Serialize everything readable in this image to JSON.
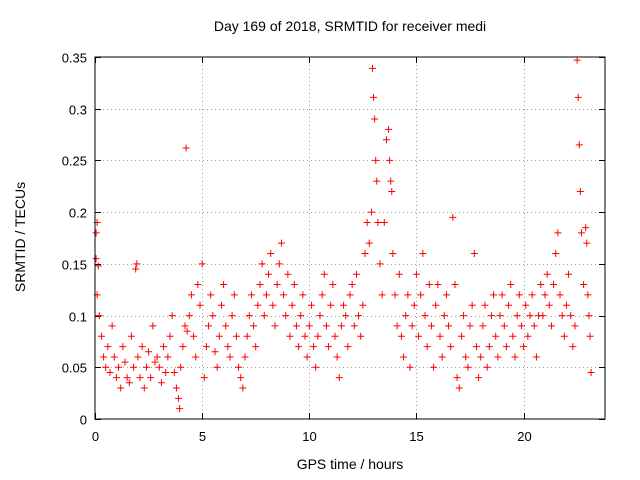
{
  "chart_data": {
    "type": "scatter",
    "title": "Day 169 of 2018, SRMTID for receiver medi",
    "xlabel": "GPS time / hours",
    "ylabel": "SRMTID / TECUs",
    "xlim": [
      0,
      23.8
    ],
    "ylim": [
      0,
      0.35
    ],
    "xticks": [
      0,
      5,
      10,
      15,
      20
    ],
    "xtick_labels": [
      "0",
      "5",
      "10",
      "15",
      "20"
    ],
    "yticks": [
      0,
      0.05,
      0.1,
      0.15,
      0.2,
      0.25,
      0.3,
      0.35
    ],
    "ytick_labels": [
      "0",
      "0.05",
      "0.1",
      "0.15",
      "0.2",
      "0.25",
      "0.3",
      "0.35"
    ],
    "grid": true,
    "marker": "+",
    "color": "#ff0000",
    "series": [
      {
        "name": "SRMTID",
        "points": [
          [
            0.05,
            0.18
          ],
          [
            0.1,
            0.19
          ],
          [
            0.05,
            0.155
          ],
          [
            0.15,
            0.148
          ],
          [
            0.1,
            0.12
          ],
          [
            0.2,
            0.1
          ],
          [
            0.3,
            0.08
          ],
          [
            0.4,
            0.06
          ],
          [
            0.5,
            0.05
          ],
          [
            0.6,
            0.07
          ],
          [
            0.7,
            0.045
          ],
          [
            0.8,
            0.09
          ],
          [
            0.9,
            0.06
          ],
          [
            1.0,
            0.04
          ],
          [
            1.1,
            0.05
          ],
          [
            1.2,
            0.03
          ],
          [
            1.3,
            0.07
          ],
          [
            1.4,
            0.055
          ],
          [
            1.5,
            0.04
          ],
          [
            1.6,
            0.035
          ],
          [
            1.7,
            0.08
          ],
          [
            1.8,
            0.05
          ],
          [
            1.9,
            0.145
          ],
          [
            1.95,
            0.15
          ],
          [
            2.0,
            0.06
          ],
          [
            2.1,
            0.04
          ],
          [
            2.2,
            0.07
          ],
          [
            2.3,
            0.03
          ],
          [
            2.4,
            0.05
          ],
          [
            2.5,
            0.065
          ],
          [
            2.6,
            0.04
          ],
          [
            2.7,
            0.09
          ],
          [
            2.8,
            0.055
          ],
          [
            2.9,
            0.06
          ],
          [
            3.0,
            0.05
          ],
          [
            3.1,
            0.035
          ],
          [
            3.2,
            0.07
          ],
          [
            3.3,
            0.045
          ],
          [
            3.4,
            0.06
          ],
          [
            3.5,
            0.08
          ],
          [
            3.6,
            0.1
          ],
          [
            3.7,
            0.045
          ],
          [
            3.8,
            0.03
          ],
          [
            3.9,
            0.02
          ],
          [
            3.95,
            0.01
          ],
          [
            4.0,
            0.05
          ],
          [
            4.1,
            0.07
          ],
          [
            4.2,
            0.09
          ],
          [
            4.25,
            0.262
          ],
          [
            4.3,
            0.085
          ],
          [
            4.4,
            0.1
          ],
          [
            4.5,
            0.12
          ],
          [
            4.6,
            0.08
          ],
          [
            4.7,
            0.06
          ],
          [
            4.8,
            0.13
          ],
          [
            4.9,
            0.11
          ],
          [
            5.0,
            0.15
          ],
          [
            5.1,
            0.04
          ],
          [
            5.2,
            0.07
          ],
          [
            5.3,
            0.09
          ],
          [
            5.4,
            0.12
          ],
          [
            5.5,
            0.1
          ],
          [
            5.6,
            0.065
          ],
          [
            5.7,
            0.05
          ],
          [
            5.8,
            0.08
          ],
          [
            5.9,
            0.11
          ],
          [
            6.0,
            0.13
          ],
          [
            6.1,
            0.09
          ],
          [
            6.2,
            0.07
          ],
          [
            6.3,
            0.06
          ],
          [
            6.4,
            0.1
          ],
          [
            6.5,
            0.12
          ],
          [
            6.6,
            0.08
          ],
          [
            6.7,
            0.05
          ],
          [
            6.8,
            0.04
          ],
          [
            6.9,
            0.03
          ],
          [
            7.0,
            0.06
          ],
          [
            7.1,
            0.08
          ],
          [
            7.2,
            0.1
          ],
          [
            7.3,
            0.12
          ],
          [
            7.4,
            0.09
          ],
          [
            7.5,
            0.07
          ],
          [
            7.6,
            0.11
          ],
          [
            7.7,
            0.13
          ],
          [
            7.8,
            0.15
          ],
          [
            7.9,
            0.1
          ],
          [
            8.0,
            0.12
          ],
          [
            8.1,
            0.14
          ],
          [
            8.2,
            0.16
          ],
          [
            8.3,
            0.11
          ],
          [
            8.4,
            0.09
          ],
          [
            8.5,
            0.13
          ],
          [
            8.6,
            0.15
          ],
          [
            8.7,
            0.17
          ],
          [
            8.8,
            0.12
          ],
          [
            8.9,
            0.1
          ],
          [
            9.0,
            0.14
          ],
          [
            9.1,
            0.08
          ],
          [
            9.2,
            0.11
          ],
          [
            9.3,
            0.13
          ],
          [
            9.4,
            0.09
          ],
          [
            9.5,
            0.07
          ],
          [
            9.6,
            0.1
          ],
          [
            9.7,
            0.12
          ],
          [
            9.8,
            0.08
          ],
          [
            9.9,
            0.06
          ],
          [
            10.0,
            0.09
          ],
          [
            10.1,
            0.11
          ],
          [
            10.2,
            0.07
          ],
          [
            10.3,
            0.05
          ],
          [
            10.4,
            0.08
          ],
          [
            10.5,
            0.1
          ],
          [
            10.6,
            0.12
          ],
          [
            10.7,
            0.14
          ],
          [
            10.8,
            0.09
          ],
          [
            10.9,
            0.07
          ],
          [
            11.0,
            0.11
          ],
          [
            11.1,
            0.13
          ],
          [
            11.2,
            0.08
          ],
          [
            11.3,
            0.06
          ],
          [
            11.4,
            0.04
          ],
          [
            11.5,
            0.09
          ],
          [
            11.6,
            0.11
          ],
          [
            11.7,
            0.1
          ],
          [
            11.8,
            0.07
          ],
          [
            11.9,
            0.12
          ],
          [
            12.0,
            0.13
          ],
          [
            12.1,
            0.09
          ],
          [
            12.2,
            0.14
          ],
          [
            12.3,
            0.1
          ],
          [
            12.4,
            0.08
          ],
          [
            12.5,
            0.11
          ],
          [
            12.6,
            0.16
          ],
          [
            12.7,
            0.19
          ],
          [
            12.8,
            0.17
          ],
          [
            12.9,
            0.2
          ],
          [
            12.95,
            0.339
          ],
          [
            13.0,
            0.311
          ],
          [
            13.05,
            0.29
          ],
          [
            13.1,
            0.25
          ],
          [
            13.15,
            0.23
          ],
          [
            13.2,
            0.19
          ],
          [
            13.3,
            0.15
          ],
          [
            13.4,
            0.12
          ],
          [
            13.5,
            0.19
          ],
          [
            13.6,
            0.27
          ],
          [
            13.7,
            0.28
          ],
          [
            13.75,
            0.25
          ],
          [
            13.8,
            0.23
          ],
          [
            13.85,
            0.22
          ],
          [
            13.9,
            0.16
          ],
          [
            14.0,
            0.12
          ],
          [
            14.1,
            0.09
          ],
          [
            14.2,
            0.14
          ],
          [
            14.3,
            0.08
          ],
          [
            14.4,
            0.06
          ],
          [
            14.5,
            0.1
          ],
          [
            14.6,
            0.12
          ],
          [
            14.7,
            0.05
          ],
          [
            14.8,
            0.09
          ],
          [
            14.9,
            0.11
          ],
          [
            15.0,
            0.14
          ],
          [
            15.1,
            0.08
          ],
          [
            15.2,
            0.12
          ],
          [
            15.3,
            0.16
          ],
          [
            15.4,
            0.1
          ],
          [
            15.5,
            0.07
          ],
          [
            15.6,
            0.13
          ],
          [
            15.7,
            0.09
          ],
          [
            15.8,
            0.05
          ],
          [
            15.9,
            0.11
          ],
          [
            16.0,
            0.13
          ],
          [
            16.1,
            0.08
          ],
          [
            16.2,
            0.06
          ],
          [
            16.3,
            0.1
          ],
          [
            16.4,
            0.12
          ],
          [
            16.5,
            0.09
          ],
          [
            16.6,
            0.07
          ],
          [
            16.7,
            0.195
          ],
          [
            16.8,
            0.13
          ],
          [
            16.9,
            0.04
          ],
          [
            17.0,
            0.03
          ],
          [
            17.1,
            0.08
          ],
          [
            17.2,
            0.1
          ],
          [
            17.3,
            0.06
          ],
          [
            17.4,
            0.05
          ],
          [
            17.5,
            0.09
          ],
          [
            17.6,
            0.11
          ],
          [
            17.7,
            0.16
          ],
          [
            17.8,
            0.07
          ],
          [
            17.9,
            0.04
          ],
          [
            18.0,
            0.06
          ],
          [
            18.1,
            0.09
          ],
          [
            18.2,
            0.11
          ],
          [
            18.3,
            0.05
          ],
          [
            18.4,
            0.07
          ],
          [
            18.5,
            0.1
          ],
          [
            18.6,
            0.12
          ],
          [
            18.7,
            0.08
          ],
          [
            18.8,
            0.06
          ],
          [
            18.9,
            0.1
          ],
          [
            19.0,
            0.12
          ],
          [
            19.1,
            0.09
          ],
          [
            19.2,
            0.07
          ],
          [
            19.3,
            0.11
          ],
          [
            19.4,
            0.13
          ],
          [
            19.5,
            0.08
          ],
          [
            19.6,
            0.06
          ],
          [
            19.7,
            0.1
          ],
          [
            19.8,
            0.12
          ],
          [
            19.9,
            0.09
          ],
          [
            20.0,
            0.07
          ],
          [
            20.1,
            0.11
          ],
          [
            20.2,
            0.08
          ],
          [
            20.3,
            0.1
          ],
          [
            20.4,
            0.12
          ],
          [
            20.5,
            0.09
          ],
          [
            20.6,
            0.06
          ],
          [
            20.7,
            0.1
          ],
          [
            20.8,
            0.13
          ],
          [
            20.9,
            0.1
          ],
          [
            21.0,
            0.12
          ],
          [
            21.1,
            0.14
          ],
          [
            21.2,
            0.11
          ],
          [
            21.3,
            0.09
          ],
          [
            21.4,
            0.13
          ],
          [
            21.5,
            0.16
          ],
          [
            21.6,
            0.18
          ],
          [
            21.7,
            0.12
          ],
          [
            21.8,
            0.1
          ],
          [
            21.9,
            0.08
          ],
          [
            22.0,
            0.11
          ],
          [
            22.1,
            0.14
          ],
          [
            22.2,
            0.1
          ],
          [
            22.3,
            0.07
          ],
          [
            22.4,
            0.09
          ],
          [
            22.5,
            0.347
          ],
          [
            22.55,
            0.311
          ],
          [
            22.6,
            0.265
          ],
          [
            22.65,
            0.22
          ],
          [
            22.7,
            0.18
          ],
          [
            22.8,
            0.13
          ],
          [
            22.9,
            0.185
          ],
          [
            22.95,
            0.17
          ],
          [
            23.0,
            0.12
          ],
          [
            23.05,
            0.1
          ],
          [
            23.1,
            0.08
          ],
          [
            23.15,
            0.045
          ]
        ]
      }
    ]
  }
}
